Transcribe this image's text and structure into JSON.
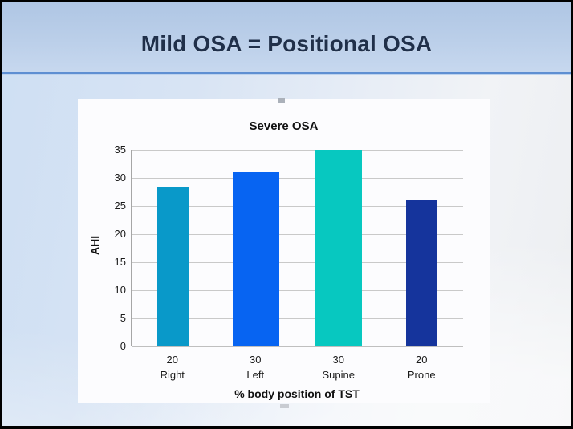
{
  "slide": {
    "title": "Mild OSA = Positional OSA"
  },
  "theme": {
    "header_background": "#BBCFE9",
    "header_rule": "#5E8FD2",
    "title_color": "#20304A",
    "panel_background": "#FCFCFE",
    "gridline_color": "#C9C9C9"
  },
  "chart_data": {
    "type": "bar",
    "title": "Severe OSA",
    "xlabel": "% body position of TST",
    "ylabel": "AHI",
    "ylim": [
      0,
      35
    ],
    "yticks": [
      0,
      5,
      10,
      15,
      20,
      25,
      30,
      35
    ],
    "grid": true,
    "legend": false,
    "categories": [
      "Right",
      "Left",
      "Supine",
      "Prone"
    ],
    "pct_of_tst": [
      20,
      30,
      30,
      20
    ],
    "values": [
      28.5,
      31,
      35,
      26
    ],
    "bar_colors": [
      "#0999C9",
      "#0764F2",
      "#07C8C0",
      "#15349C"
    ],
    "note": "bar width proportional to % of body position of total sleep time"
  }
}
